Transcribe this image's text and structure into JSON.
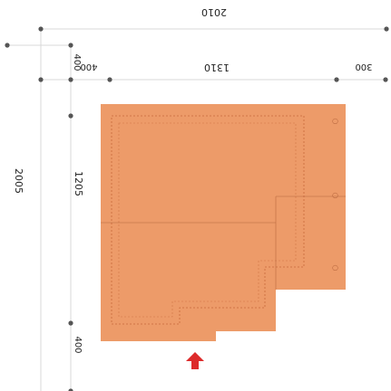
{
  "colors": {
    "footprint_fill": "#ED9B69",
    "footprint_fill_edge": "#E5884F",
    "dimension_line": "#D9D9D9",
    "dimension_dot": "#555555",
    "dashed_line": "#C86A3B",
    "entrance_arrow": "#DD2B2B",
    "text": "#222222"
  },
  "dimensions": {
    "top_total": "2010",
    "top_left_offset": "400",
    "top_middle": "1310",
    "top_right_offset": "300",
    "left_total": "2005",
    "left_top_offset": "400",
    "left_middle": "1205",
    "left_bottom_offset": "400"
  },
  "icons": {
    "entrance": "arrow-up-icon",
    "dimension_marker": "dot-icon"
  }
}
